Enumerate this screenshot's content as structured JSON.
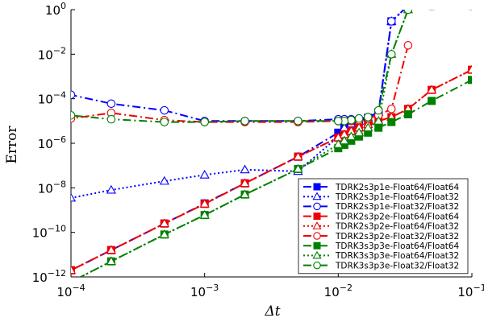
{
  "chart_data": {
    "type": "line",
    "title": "",
    "xlabel": "Δt",
    "ylabel": "Error",
    "xscale": "log",
    "yscale": "log",
    "xlim": [
      0.0001,
      0.1
    ],
    "ylim": [
      1e-12,
      1
    ],
    "grid": false,
    "legend_position": "bottom-right",
    "x_ticks": [
      {
        "value": 0.0001,
        "base": "10",
        "exp": "−4"
      },
      {
        "value": 0.001,
        "base": "10",
        "exp": "−3"
      },
      {
        "value": 0.01,
        "base": "10",
        "exp": "−2"
      },
      {
        "value": 0.1,
        "base": "10",
        "exp": "−1"
      }
    ],
    "y_ticks": [
      {
        "value": 1e-12,
        "base": "10",
        "exp": "−12"
      },
      {
        "value": 1e-10,
        "base": "10",
        "exp": "−10"
      },
      {
        "value": 1e-08,
        "base": "10",
        "exp": "−8"
      },
      {
        "value": 1e-06,
        "base": "10",
        "exp": "−6"
      },
      {
        "value": 0.0001,
        "base": "10",
        "exp": "−4"
      },
      {
        "value": 0.01,
        "base": "10",
        "exp": "−2"
      },
      {
        "value": 1,
        "base": "10",
        "exp": "0"
      }
    ],
    "series": [
      {
        "name": "TDRK2s3p1e-Float64/Float64",
        "color": "#0000ff",
        "dash": "dashdot",
        "marker": "square",
        "filled": true,
        "x": [
          0.1,
          0.05,
          0.0333,
          0.025,
          0.02,
          0.0167,
          0.0143,
          0.0125,
          0.0111,
          0.01,
          0.005,
          0.002,
          0.001,
          0.0005,
          0.0002,
          0.0001
        ],
        "y": [
          1.5,
          1.5,
          1.5,
          0.3,
          2.5e-05,
          1.4e-05,
          1e-05,
          7.5e-06,
          5e-06,
          3e-06,
          2.5e-07,
          1.6e-08,
          2e-09,
          2.5e-10,
          1.6e-11,
          2e-12
        ]
      },
      {
        "name": "TDRK2s3p1e-Float64/Float32",
        "color": "#0000ff",
        "dash": "dotted",
        "marker": "triangle",
        "filled": false,
        "x": [
          0.1,
          0.05,
          0.0333,
          0.025,
          0.02,
          0.0167,
          0.0143,
          0.0125,
          0.0111,
          0.01,
          0.005,
          0.002,
          0.001,
          0.0005,
          0.0002,
          0.0001
        ],
        "y": [
          1.5,
          1.5,
          1.5,
          0.3,
          2.5e-05,
          1.4e-05,
          1e-05,
          7.5e-06,
          5e-06,
          2e-06,
          5.5e-08,
          6.5e-08,
          3.8e-08,
          2e-08,
          8e-09,
          3.5e-09
        ]
      },
      {
        "name": "TDRK2s3p1e-Float32/Float32",
        "color": "#0000ff",
        "dash": "dashdot",
        "marker": "circle",
        "filled": false,
        "x": [
          0.1,
          0.05,
          0.0333,
          0.025,
          0.02,
          0.0167,
          0.0143,
          0.0125,
          0.0111,
          0.01,
          0.005,
          0.002,
          0.001,
          0.0005,
          0.0002,
          0.0001
        ],
        "y": [
          1.5,
          1.5,
          1.5,
          0.3,
          2.5e-05,
          1.5e-05,
          1.3e-05,
          1.2e-05,
          1.2e-05,
          1.2e-05,
          1e-05,
          1e-05,
          1e-05,
          3e-05,
          6e-05,
          0.00015
        ]
      },
      {
        "name": "TDRK2s3p2e-Float64/Float64",
        "color": "#ee0000",
        "dash": "dashdot",
        "marker": "square",
        "filled": true,
        "x": [
          0.1,
          0.05,
          0.0333,
          0.025,
          0.02,
          0.0167,
          0.0143,
          0.0125,
          0.0111,
          0.01,
          0.005,
          0.002,
          0.001,
          0.0005,
          0.0002,
          0.0001
        ],
        "y": [
          0.002,
          0.00025,
          3.5e-05,
          1.5e-05,
          1e-05,
          7e-06,
          5e-06,
          3.5e-06,
          2.5e-06,
          1.8e-06,
          2.5e-07,
          1.6e-08,
          1.9e-09,
          2.5e-10,
          1.6e-11,
          2e-12
        ]
      },
      {
        "name": "TDRK2s3p2e-Float64/Float32",
        "color": "#ee0000",
        "dash": "dotted",
        "marker": "triangle",
        "filled": false,
        "x": [
          0.1,
          0.05,
          0.0333,
          0.025,
          0.02,
          0.0167,
          0.0143,
          0.0125,
          0.0111,
          0.01,
          0.005,
          0.002,
          0.001,
          0.0005,
          0.0002,
          0.0001
        ],
        "y": [
          0.002,
          0.00025,
          3.5e-05,
          1.5e-05,
          1e-05,
          7e-06,
          5e-06,
          3.5e-06,
          2.5e-06,
          1.8e-06,
          2.5e-07,
          1.6e-08,
          1.9e-09,
          2.5e-10,
          1.6e-11,
          2e-12
        ]
      },
      {
        "name": "TDRK2s3p2e-Float32/Float32",
        "color": "#ee0000",
        "dash": "dashdot",
        "marker": "circle",
        "filled": false,
        "x": [
          0.0333,
          0.025,
          0.02,
          0.0167,
          0.0143,
          0.0125,
          0.0111,
          0.01,
          0.005,
          0.002,
          0.001,
          0.0005,
          0.0002,
          0.0001
        ],
        "y": [
          0.025,
          3.5e-05,
          1.8e-05,
          1.3e-05,
          1.1e-05,
          1e-05,
          1e-05,
          1e-05,
          9e-06,
          9e-06,
          9e-06,
          1.1e-05,
          2.3e-05,
          1.3e-05
        ]
      },
      {
        "name": "TDRK3s3p3e-Float64/Float64",
        "color": "#008000",
        "dash": "dashdot",
        "marker": "square",
        "filled": true,
        "x": [
          0.1,
          0.05,
          0.0333,
          0.025,
          0.02,
          0.0167,
          0.0143,
          0.0125,
          0.0111,
          0.01,
          0.005,
          0.002,
          0.001,
          0.0005,
          0.0002,
          0.0001
        ],
        "y": [
          0.0007,
          8e-05,
          2e-05,
          9e-06,
          5e-06,
          3e-06,
          2e-06,
          1.3e-06,
          8.5e-07,
          6e-07,
          7e-08,
          5e-09,
          6e-10,
          8e-11,
          5e-12,
          6e-13
        ]
      },
      {
        "name": "TDRK3s3p3e-Float64/Float32",
        "color": "#008000",
        "dash": "dotted",
        "marker": "triangle",
        "filled": false,
        "x": [
          0.1,
          0.05,
          0.0333,
          0.025,
          0.02,
          0.0167,
          0.0143,
          0.0125,
          0.0111,
          0.01,
          0.005,
          0.002,
          0.001,
          0.0005,
          0.0002,
          0.0001
        ],
        "y": [
          1.5,
          1.5,
          1.0,
          0.01,
          1e-05,
          5e-06,
          3e-06,
          2e-06,
          1.3e-06,
          9e-07,
          7e-08,
          5e-09,
          6e-10,
          8e-11,
          5e-12,
          6e-13
        ]
      },
      {
        "name": "TDRK3s3p3e-Float32/Float32",
        "color": "#008000",
        "dash": "dashdot",
        "marker": "circle",
        "filled": false,
        "x": [
          0.1,
          0.05,
          0.0333,
          0.025,
          0.02,
          0.0167,
          0.0143,
          0.0125,
          0.0111,
          0.01,
          0.005,
          0.002,
          0.001,
          0.0005,
          0.0002,
          0.0001
        ],
        "y": [
          1.5,
          1.5,
          1.0,
          0.01,
          3e-05,
          1.5e-05,
          1.3e-05,
          1.1e-05,
          1e-05,
          1e-05,
          1e-05,
          1e-05,
          9e-06,
          9e-06,
          1.2e-05,
          1.8e-05
        ]
      }
    ]
  }
}
